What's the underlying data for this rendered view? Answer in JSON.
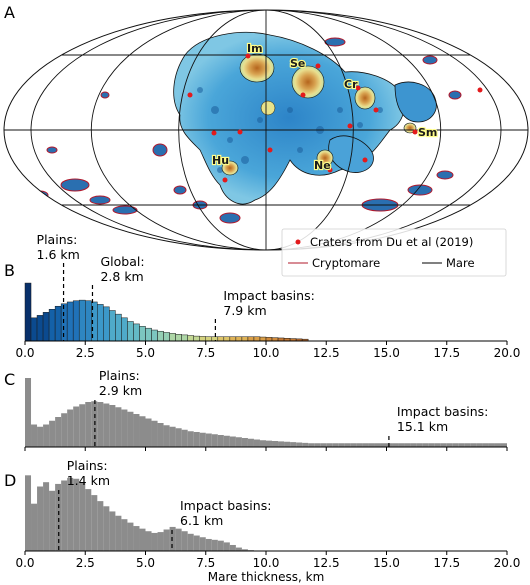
{
  "panel_letters": [
    "A",
    "B",
    "C",
    "D"
  ],
  "map": {
    "legend": [
      {
        "label": "Craters from Du et al (2019)",
        "symbol": "dot",
        "color": "#e31a1c"
      },
      {
        "label": "Cryptomare",
        "symbol": "line",
        "color": "#b2182b"
      },
      {
        "label": "Mare",
        "symbol": "line",
        "color": "#000000"
      }
    ],
    "basin_labels": [
      "Im",
      "Se",
      "Cr",
      "Sm",
      "Hu",
      "Ne"
    ]
  },
  "chart_data": [
    {
      "panel": "B",
      "type": "bar",
      "bin_width": 0.25,
      "xlim": [
        0,
        20
      ],
      "xticks": [
        "0.0",
        "2.5",
        "5.0",
        "7.5",
        "10.0",
        "12.5",
        "15.0",
        "17.5",
        "20.0"
      ],
      "colormap": "blue-to-brown by thickness",
      "bin_start": 0,
      "values": [
        0.95,
        0.38,
        0.42,
        0.47,
        0.52,
        0.57,
        0.61,
        0.64,
        0.66,
        0.67,
        0.66,
        0.64,
        0.6,
        0.56,
        0.5,
        0.44,
        0.38,
        0.32,
        0.28,
        0.24,
        0.21,
        0.18,
        0.16,
        0.14,
        0.125,
        0.11,
        0.1,
        0.09,
        0.08,
        0.075,
        0.07,
        0.07,
        0.07,
        0.07,
        0.07,
        0.07,
        0.07,
        0.07,
        0.07,
        0.065,
        0.06,
        0.055,
        0.05,
        0.045,
        0.04,
        0.035,
        0.03
      ],
      "markers": [
        {
          "value": 1.6,
          "label_line1": "Plains:",
          "label_line2": "1.6 km"
        },
        {
          "value": 2.8,
          "label_line1": "Global:",
          "label_line2": "2.8 km"
        },
        {
          "value": 7.9,
          "label_line1": "Impact basins:",
          "label_line2": "7.9 km"
        }
      ]
    },
    {
      "panel": "C",
      "type": "bar",
      "bin_width": 0.25,
      "xlim": [
        0,
        20
      ],
      "xticks": [
        "",
        "",
        "",
        "",
        "",
        "",
        "",
        "",
        ""
      ],
      "color": "#8c8c8c",
      "bin_start": 0,
      "values": [
        0.92,
        0.3,
        0.27,
        0.3,
        0.35,
        0.4,
        0.45,
        0.5,
        0.54,
        0.57,
        0.6,
        0.61,
        0.6,
        0.58,
        0.56,
        0.53,
        0.5,
        0.47,
        0.44,
        0.41,
        0.38,
        0.35,
        0.32,
        0.29,
        0.27,
        0.25,
        0.23,
        0.21,
        0.2,
        0.19,
        0.18,
        0.17,
        0.16,
        0.15,
        0.14,
        0.13,
        0.12,
        0.11,
        0.1,
        0.09,
        0.085,
        0.08,
        0.075,
        0.07,
        0.065,
        0.06,
        0.055,
        0.05,
        0.05,
        0.05,
        0.05,
        0.05,
        0.05,
        0.05,
        0.05,
        0.05,
        0.05,
        0.05,
        0.05,
        0.05,
        0.05,
        0.05,
        0.05,
        0.05,
        0.05,
        0.05,
        0.05,
        0.05,
        0.05,
        0.05,
        0.05,
        0.05,
        0.05,
        0.05,
        0.05,
        0.05,
        0.05,
        0.05,
        0.05,
        0.05
      ],
      "markers": [
        {
          "value": 2.9,
          "label_line1": "Plains:",
          "label_line2": "2.9 km"
        },
        {
          "value": 15.1,
          "label_line1": "Impact basins:",
          "label_line2": "15.1 km"
        }
      ]
    },
    {
      "panel": "D",
      "type": "bar",
      "bin_width": 0.25,
      "xlim": [
        0,
        20
      ],
      "xticks": [
        "0.0",
        "2.5",
        "5.0",
        "7.5",
        "10.0",
        "12.5",
        "15.0",
        "17.5",
        "20.0"
      ],
      "xlabel": "Mare thickness, km",
      "color": "#8c8c8c",
      "bin_start": 0,
      "values": [
        0.88,
        0.55,
        0.75,
        0.8,
        0.7,
        0.78,
        0.82,
        0.85,
        0.84,
        0.8,
        0.72,
        0.65,
        0.58,
        0.52,
        0.46,
        0.41,
        0.37,
        0.33,
        0.29,
        0.26,
        0.23,
        0.21,
        0.22,
        0.25,
        0.28,
        0.26,
        0.23,
        0.2,
        0.18,
        0.16,
        0.14,
        0.13,
        0.12,
        0.1,
        0.07,
        0.04,
        0.02,
        0.01
      ],
      "markers": [
        {
          "value": 1.4,
          "label_line1": "Plains:",
          "label_line2": "1.4 km"
        },
        {
          "value": 6.1,
          "label_line1": "Impact basins:",
          "label_line2": "6.1 km"
        }
      ]
    }
  ]
}
